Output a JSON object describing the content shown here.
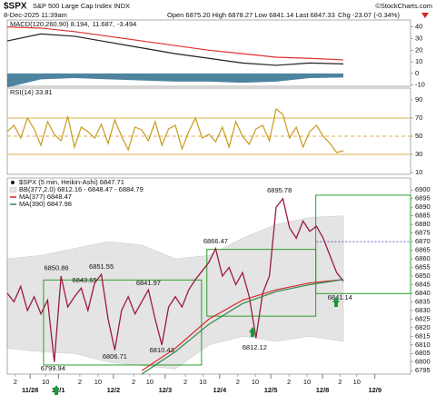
{
  "header": {
    "symbol": "$SPX",
    "name": "S&P 500 Large Cap Index INDX",
    "date": "8-Dec-2025 11:39am",
    "ohlc": "Open 6875.20 High 6878.27 Low 6841.14 Last 6847.33",
    "change": "Chg -23.07 (-0.34%)",
    "credit": "©StockCharts.com"
  },
  "chart_data": [
    {
      "type": "line",
      "legend_items": [
        {
          "text": "MACD(120,260,90) 8.194,",
          "color": "#222222"
        },
        {
          "text": "11.687,",
          "color": "#e03030"
        },
        {
          "text": "-3.494",
          "color": "#2f6f8f"
        }
      ],
      "xlim": [
        0,
        60
      ],
      "ylim": [
        -11,
        46
      ],
      "yticks": [
        -10,
        0,
        10,
        20,
        30,
        40
      ],
      "series": [
        {
          "kind": "area",
          "color": "#2f6f8f",
          "x": [
            0,
            5,
            10,
            15,
            20,
            25,
            30,
            35,
            40,
            45,
            50
          ],
          "values": [
            -12,
            -5,
            -4,
            -5,
            -6,
            -7,
            -7,
            -8,
            -7,
            -4,
            -3.5
          ]
        },
        {
          "kind": "line",
          "color": "#e03030",
          "x": [
            0,
            5,
            10,
            15,
            20,
            25,
            30,
            35,
            40,
            45,
            50
          ],
          "values": [
            40,
            39,
            36,
            32,
            28,
            24,
            20,
            17,
            14,
            13,
            11.7
          ]
        },
        {
          "kind": "line",
          "color": "#222222",
          "x": [
            0,
            5,
            10,
            15,
            20,
            25,
            30,
            35,
            40,
            45,
            50
          ],
          "values": [
            28,
            34,
            32,
            27,
            22,
            17,
            13,
            9,
            7,
            9,
            8.2
          ]
        }
      ]
    },
    {
      "type": "line",
      "label": "RSI(14) 33.81",
      "xlim": [
        0,
        60
      ],
      "ylim": [
        8,
        103
      ],
      "yticks": [
        10,
        30,
        50,
        70,
        90
      ],
      "levels": [
        70,
        50,
        30
      ],
      "level_color": "#d9b24a",
      "series": [
        {
          "kind": "line",
          "color": "#c99a1e",
          "values": [
            55,
            62,
            48,
            70,
            58,
            40,
            66,
            52,
            45,
            72,
            38,
            60,
            55,
            48,
            63,
            42,
            68,
            50,
            35,
            60,
            57,
            45,
            66,
            40,
            58,
            62,
            36,
            55,
            70,
            48,
            52,
            44,
            60,
            38,
            66,
            50,
            41,
            58,
            62,
            45,
            80,
            74,
            48,
            60,
            38,
            55,
            62,
            50,
            42,
            32,
            34
          ]
        }
      ]
    },
    {
      "type": "line",
      "xlim": [
        0,
        60
      ],
      "ylim": [
        6793,
        6907
      ],
      "yticks": [
        6795,
        6800,
        6805,
        6810,
        6815,
        6820,
        6825,
        6830,
        6835,
        6840,
        6845,
        6850,
        6855,
        6860,
        6865,
        6870,
        6875,
        6880,
        6885,
        6890,
        6895,
        6900
      ],
      "xticks": [
        {
          "value": 1.2,
          "label": "2"
        },
        {
          "value": 5.7,
          "label": "10"
        },
        {
          "value": 10.8,
          "label": "2"
        },
        {
          "value": 13.5,
          "label": "10"
        },
        {
          "value": 18.8,
          "label": "2"
        },
        {
          "value": 21.2,
          "label": "10"
        },
        {
          "value": 26.5,
          "label": "2"
        },
        {
          "value": 29.1,
          "label": "10"
        },
        {
          "value": 34.3,
          "label": "2"
        },
        {
          "value": 36.9,
          "label": "10"
        },
        {
          "value": 41.9,
          "label": "2"
        },
        {
          "value": 44.6,
          "label": "10"
        },
        {
          "value": 49.5,
          "label": "2"
        },
        {
          "value": 52,
          "label": "10"
        }
      ],
      "date_ticks": [
        {
          "value": 3.4,
          "label": "11/28"
        },
        {
          "value": 7.6,
          "label": "12/1"
        },
        {
          "value": 15.8,
          "label": "12/2"
        },
        {
          "value": 23.5,
          "label": "12/3"
        },
        {
          "value": 31.6,
          "label": "12/4"
        },
        {
          "value": 39.2,
          "label": "12/5"
        },
        {
          "value": 46.9,
          "label": "12/8"
        },
        {
          "value": 54.7,
          "label": "12/9"
        }
      ],
      "band": {
        "name": "BB(377,2.0) 6812.16 - 6848.47 - 6884.79",
        "color": "#e4e4e4",
        "x": [
          0,
          5,
          10,
          15,
          20,
          25,
          30,
          35,
          40,
          45,
          50
        ],
        "upper": [
          6860,
          6862,
          6866,
          6870,
          6868,
          6860,
          6862,
          6872,
          6880,
          6884,
          6885
        ],
        "lower": [
          6808,
          6806,
          6805,
          6800,
          6798,
          6796,
          6810,
          6815,
          6812,
          6815,
          6812
        ]
      },
      "series": [
        {
          "name": "$SPX (5 min, Heikin-Ashi) 6847.71",
          "kind": "line",
          "color": "#9b1b40",
          "values": [
            6840,
            6835,
            6844,
            6830,
            6838,
            6828,
            6836,
            6800,
            6850,
            6832,
            6838,
            6843,
            6830,
            6846,
            6851,
            6825,
            6807,
            6830,
            6838,
            6828,
            6835,
            6842,
            6825,
            6810,
            6832,
            6838,
            6832,
            6842,
            6848,
            6853,
            6858,
            6866,
            6850,
            6855,
            6845,
            6852,
            6838,
            6814,
            6840,
            6850,
            6890,
            6895,
            6878,
            6872,
            6882,
            6876,
            6879,
            6872,
            6862,
            6852,
            6847
          ]
        },
        {
          "name": "MA(377) 6848.47",
          "kind": "line",
          "color": "#d62728",
          "x": [
            20,
            25,
            30,
            35,
            40,
            45,
            50
          ],
          "values": [
            6795,
            6808,
            6825,
            6836,
            6842,
            6846,
            6848
          ]
        },
        {
          "name": "MA(390) 6847.98",
          "kind": "line",
          "color": "#2a8a4a",
          "x": [
            20,
            25,
            30,
            35,
            40,
            45,
            50
          ],
          "values": [
            6793,
            6806,
            6822,
            6834,
            6841,
            6845,
            6848
          ]
        }
      ],
      "boxes": [
        {
          "x": [
            5.4,
            28.9
          ],
          "y": [
            6798.3,
            6847.7
          ]
        },
        {
          "x": [
            29.7,
            45.9
          ],
          "y": [
            6826.7,
            6865.5
          ]
        },
        {
          "x": [
            45.9,
            60
          ],
          "y": [
            6839.8,
            6897
          ]
        }
      ],
      "box_color": "#2ca02c",
      "reference_line": {
        "value": 6870,
        "x": [
          46,
          60
        ],
        "color": "#3030c0"
      },
      "price_labels": [
        {
          "value": 6850.86,
          "x": 7.3,
          "position": "above"
        },
        {
          "value": 6843.65,
          "x": 11.5,
          "position": "above"
        },
        {
          "value": 6851.55,
          "x": 14,
          "position": "above"
        },
        {
          "value": 6841.97,
          "x": 21,
          "position": "above"
        },
        {
          "value": 6866.47,
          "x": 31,
          "position": "above"
        },
        {
          "value": 6895.78,
          "x": 40.5,
          "position": "above"
        },
        {
          "value": 6799.94,
          "x": 6.8,
          "position": "below"
        },
        {
          "value": 6806.71,
          "x": 16,
          "position": "below"
        },
        {
          "value": 6810.43,
          "x": 23,
          "position": "below"
        },
        {
          "value": 6812.12,
          "x": 36.8,
          "position": "below"
        },
        {
          "value": 6841.14,
          "x": 49.5,
          "position": "below"
        }
      ]
    }
  ]
}
